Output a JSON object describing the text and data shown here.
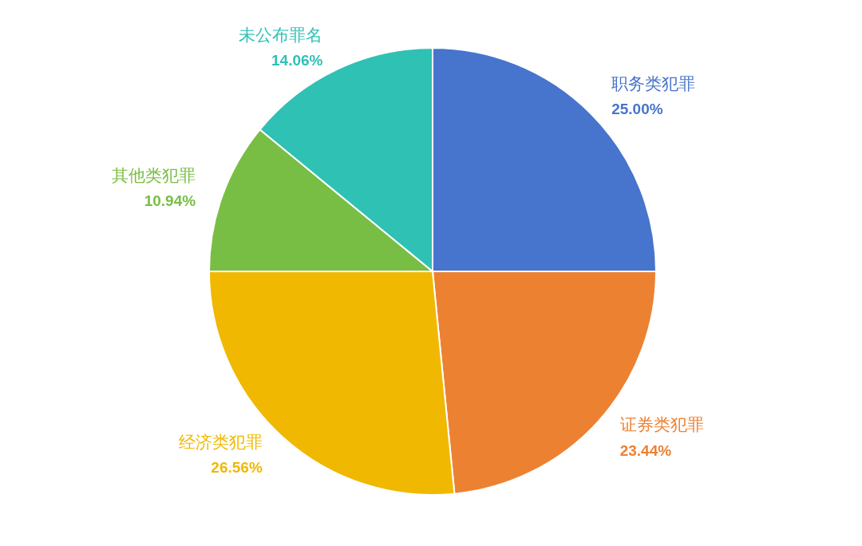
{
  "chart_data": {
    "type": "pie",
    "categories": [
      "职务类犯罪",
      "证券类犯罪",
      "经济类犯罪",
      "其他类犯罪",
      "未公布罪名"
    ],
    "values": [
      25.0,
      23.44,
      26.56,
      10.94,
      14.06
    ],
    "value_labels": [
      "25.00%",
      "23.44%",
      "26.56%",
      "10.94%",
      "14.06%"
    ],
    "colors": [
      "#4774cc",
      "#ed8132",
      "#f0b800",
      "#78be44",
      "#2fc1b4"
    ],
    "legend": false
  }
}
